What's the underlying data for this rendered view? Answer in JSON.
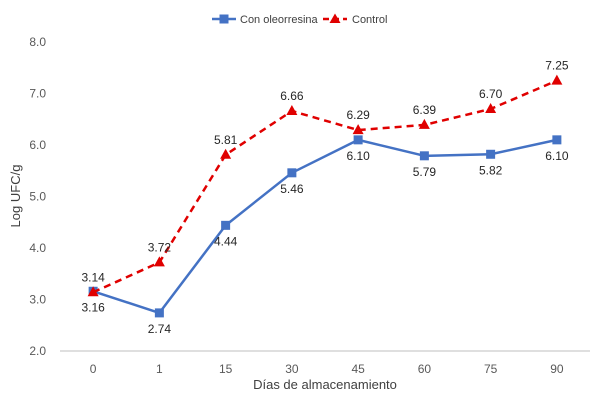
{
  "chart_data": {
    "type": "line",
    "xlabel": "Días de almacenamiento",
    "ylabel": "Log UFC/g",
    "categories": [
      "0",
      "1",
      "15",
      "30",
      "45",
      "60",
      "75",
      "90"
    ],
    "ylim": [
      2.0,
      8.0
    ],
    "ytick_labels": [
      "2.0",
      "3.0",
      "4.0",
      "5.0",
      "6.0",
      "7.0",
      "8.0"
    ],
    "grid": false,
    "legend_position": "top",
    "series": [
      {
        "name": "Con oleorresina",
        "color": "#4472C4",
        "line_style": "solid",
        "marker": "square",
        "values": [
          3.16,
          2.74,
          4.44,
          5.46,
          6.1,
          5.79,
          5.82,
          6.1
        ],
        "labels": [
          "3.16",
          "2.74",
          "4.44",
          "5.46",
          "6.10",
          "5.79",
          "5.82",
          "6.10"
        ]
      },
      {
        "name": "Control",
        "color": "#E00000",
        "line_style": "dashed",
        "marker": "triangle",
        "values": [
          3.14,
          3.72,
          5.81,
          6.66,
          6.29,
          6.39,
          6.7,
          7.25
        ],
        "labels": [
          "3.14",
          "3.72",
          "5.81",
          "6.66",
          "6.29",
          "6.39",
          "6.70",
          "7.25"
        ]
      }
    ]
  }
}
